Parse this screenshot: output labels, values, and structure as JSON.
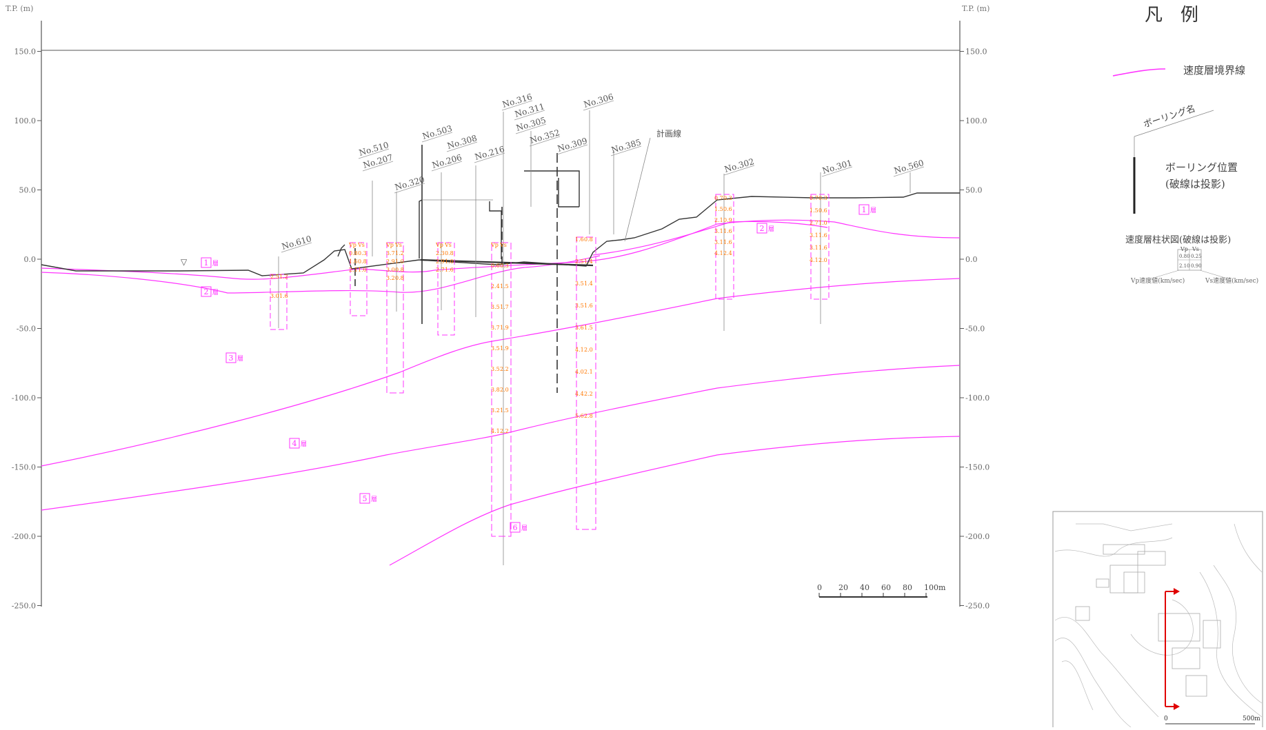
{
  "axis": {
    "unit_label": "T.P. (m)",
    "ticks": [
      {
        "v": 150,
        "label": "150.0"
      },
      {
        "v": 100,
        "label": "100.0"
      },
      {
        "v": 50,
        "label": "50.0"
      },
      {
        "v": 0,
        "label": "0.0"
      },
      {
        "v": -50,
        "label": "-50.0"
      },
      {
        "v": -100,
        "label": "-100.0"
      },
      {
        "v": -150,
        "label": "-150.0"
      },
      {
        "v": -200,
        "label": "-200.0"
      },
      {
        "v": -250,
        "label": "-250.0"
      }
    ]
  },
  "legend": {
    "title": "凡　例",
    "boundary_line": "速度層境界線",
    "boring_name": "ボーリング名",
    "boring_position": "ボーリング位置",
    "boring_position_note": "(破線は投影)",
    "column_title": "速度層柱状図(破線は投影)",
    "col_vp": "Vp",
    "col_vs": "Vs",
    "sample_vp": "0.80",
    "sample_vs": "0.25",
    "sample_vp2": "2.10",
    "sample_vs2": "0.90",
    "vp_desc": "Vp速度値(km/sec)",
    "vs_desc": "Vs速度値(km/sec)"
  },
  "scale_bar": {
    "labels": [
      "0",
      "20",
      "40",
      "60",
      "80",
      "100m"
    ]
  },
  "inset": {
    "scale_labels": [
      "0",
      "500m"
    ]
  },
  "borings": [
    {
      "name": "No.610"
    },
    {
      "name": "No.510"
    },
    {
      "name": "No.207"
    },
    {
      "name": "No.320"
    },
    {
      "name": "No.503"
    },
    {
      "name": "No.206"
    },
    {
      "name": "No.308"
    },
    {
      "name": "No.216"
    },
    {
      "name": "No.316"
    },
    {
      "name": "No.311"
    },
    {
      "name": "No.305"
    },
    {
      "name": "No.352"
    },
    {
      "name": "No.309"
    },
    {
      "name": "No.306"
    },
    {
      "name": "No.385"
    },
    {
      "name": "No.302"
    },
    {
      "name": "No.301"
    },
    {
      "name": "No.560"
    }
  ],
  "annotations": {
    "surface_line": "計画線",
    "water_mark": "▽"
  },
  "layers": [
    {
      "label": "1",
      "suffix": "層"
    },
    {
      "label": "2",
      "suffix": "層"
    },
    {
      "label": "3",
      "suffix": "層"
    },
    {
      "label": "4",
      "suffix": "層"
    },
    {
      "label": "5",
      "suffix": "層"
    },
    {
      "label": "6",
      "suffix": "層"
    },
    {
      "label": "1",
      "suffix": "層"
    },
    {
      "label": "2",
      "suffix": "層"
    }
  ],
  "velocity_columns": [
    {
      "rows": [
        [
          "2.5",
          "1.2"
        ],
        [
          "3.0",
          "1.6"
        ]
      ]
    },
    {
      "rows": [
        [
          "Vp",
          "Vs"
        ],
        [
          "0.8",
          "0.3"
        ],
        [
          "1.6",
          "0.8"
        ],
        [
          "2.1",
          "1.0"
        ]
      ]
    },
    {
      "rows": [
        [
          "Vp",
          "Vs"
        ],
        [
          "3.7",
          "1.2"
        ],
        [
          "2.9",
          "1.0"
        ],
        [
          "3.0",
          "0.8"
        ],
        [
          "3.2",
          "0.8"
        ]
      ]
    },
    {
      "rows": [
        [
          "Vp",
          "Vs"
        ],
        [
          "2.3",
          "0.8"
        ],
        [
          "2.9",
          "1.0"
        ],
        [
          "2.7",
          "1.6"
        ]
      ]
    },
    {
      "rows": [
        [
          "Vp",
          "Vs"
        ],
        [
          "0.6",
          "0.3"
        ],
        [
          "2.4",
          "1.5"
        ],
        [
          "3.5",
          "1.7"
        ],
        [
          "3.7",
          "1.9"
        ],
        [
          "3.5",
          "1.9"
        ],
        [
          "3.5",
          "2.2"
        ],
        [
          "3.8",
          "2.0"
        ],
        [
          "3.2",
          "1.5"
        ],
        [
          "4.1",
          "2.2"
        ]
      ]
    },
    {
      "rows": [
        [
          "1.6",
          "0.8"
        ],
        [
          "2.5",
          "1.4"
        ],
        [
          "3.5",
          "1.4"
        ],
        [
          "3.5",
          "1.6"
        ],
        [
          "3.6",
          "1.5"
        ],
        [
          "4.1",
          "2.0"
        ],
        [
          "4.0",
          "2.1"
        ],
        [
          "4.4",
          "2.2"
        ],
        [
          "5.6",
          "2.8"
        ]
      ]
    },
    {
      "rows": [
        [
          "0.7",
          "0.3"
        ],
        [
          "1.5",
          "0.6"
        ],
        [
          "2.1",
          "0.9"
        ],
        [
          "3.1",
          "1.6"
        ],
        [
          "3.1",
          "1.6"
        ],
        [
          "4.1",
          "2.4"
        ]
      ]
    },
    {
      "rows": [
        [
          "0.7",
          "0.3"
        ],
        [
          "1.5",
          "0.6"
        ],
        [
          "2.7",
          "1.0"
        ],
        [
          "3.1",
          "1.6"
        ],
        [
          "3.1",
          "1.6"
        ],
        [
          "4.1",
          "2.0"
        ]
      ]
    }
  ],
  "colors": {
    "boundary": "#ff33ff",
    "velocity_text": "#ff7700",
    "structure": "#333333",
    "grid": "#555555"
  }
}
